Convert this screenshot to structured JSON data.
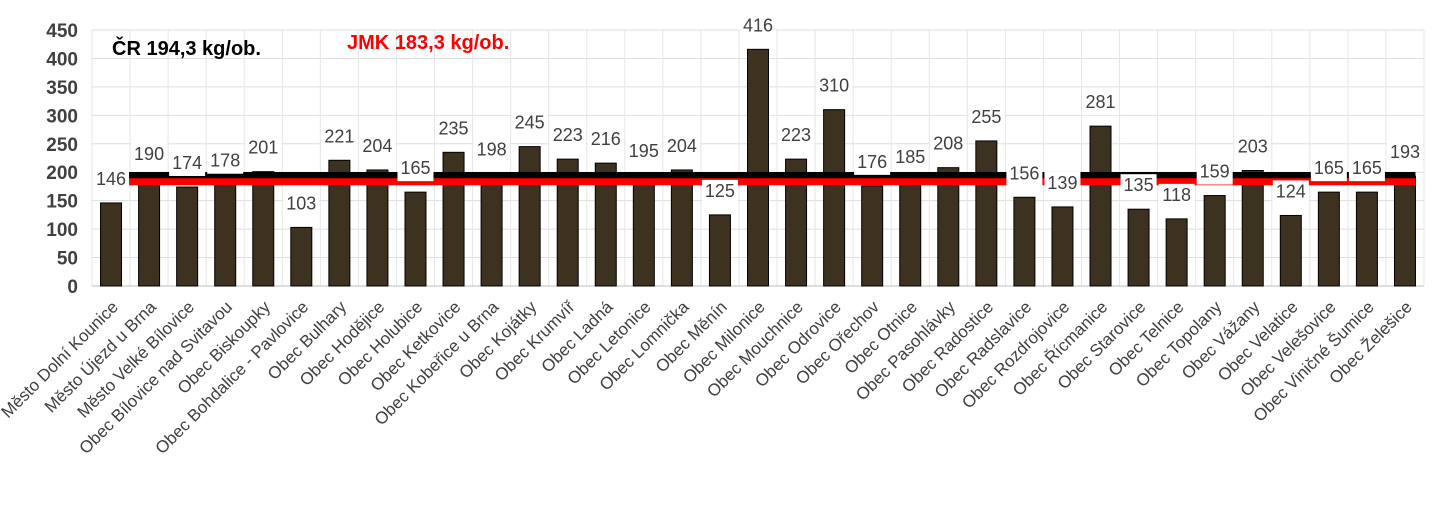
{
  "chart_data": {
    "type": "bar",
    "categories": [
      "Město Dolní Kounice",
      "Město Újezd u Brna",
      "Město Velké Bílovice",
      "Obec Bílovice nad Svitavou",
      "Obec Biskoupky",
      "Obec Bohdalice - Pavlovice",
      "Obec Bulhary",
      "Obec Hodějice",
      "Obec Holubice",
      "Obec Ketkovice",
      "Obec Kobeřice u Brna",
      "Obec Kojátky",
      "Obec Krumvíř",
      "Obec Ladná",
      "Obec Letonice",
      "Obec Lomnička",
      "Obec Měnín",
      "Obec Milonice",
      "Obec Mouchnice",
      "Obec Odrovice",
      "Obec Ořechov",
      "Obec Otnice",
      "Obec Pasohlávky",
      "Obec Radostice",
      "Obec Radslavice",
      "Obec Rozdrojovice",
      "Obec Řícmanice",
      "Obec Starovice",
      "Obec Telnice",
      "Obec Topolany",
      "Obec Vážany",
      "Obec Velatice",
      "Obec Velešovice",
      "Obec Viničné Šumice",
      "Obec Želešice"
    ],
    "values": [
      146,
      190,
      174,
      178,
      201,
      103,
      221,
      204,
      165,
      235,
      198,
      245,
      223,
      216,
      195,
      204,
      125,
      416,
      223,
      310,
      176,
      185,
      208,
      255,
      156,
      139,
      281,
      135,
      118,
      159,
      203,
      124,
      165,
      165,
      193
    ],
    "data_labels": [
      "146",
      "190",
      "174",
      "178",
      "201",
      "103",
      "221",
      "204",
      "165",
      "235",
      "198",
      "245",
      "223",
      "216",
      "195",
      "204",
      "125",
      "416",
      "223",
      "310",
      "176",
      "185",
      "208",
      "255",
      "156",
      "139",
      "281",
      "135",
      "118",
      "159",
      "203",
      "124",
      "165",
      "165",
      "193"
    ],
    "ylim": [
      0,
      450
    ],
    "yticks": [
      0,
      50,
      100,
      150,
      200,
      250,
      300,
      350,
      400,
      450
    ],
    "grid": true,
    "reference_lines": [
      {
        "label": "ČR 194,3 kg/ob.",
        "value": 194.3,
        "color": "#000000"
      },
      {
        "label": "JMK 183,3 kg/ob.",
        "value": 183.3,
        "color": "#ff0000"
      }
    ],
    "bar_color": "#3d3220",
    "xlabel": "",
    "ylabel": ""
  }
}
